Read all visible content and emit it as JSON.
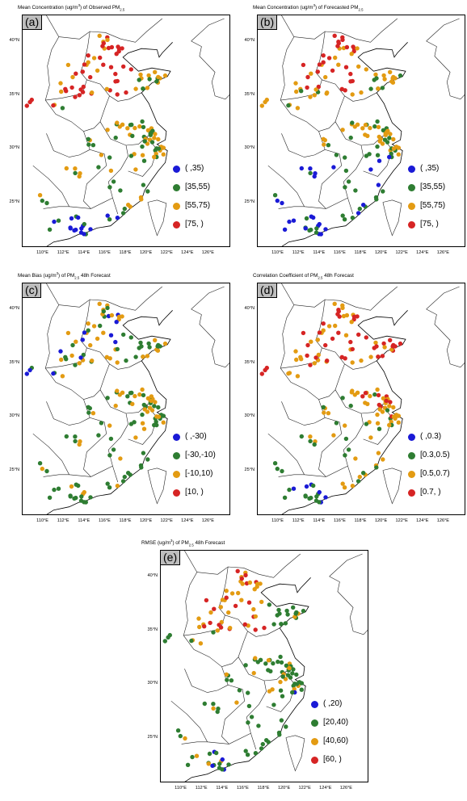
{
  "colors": {
    "blue": "#1a1ad6",
    "green": "#2e7d32",
    "orange": "#e39b12",
    "red": "#d62424"
  },
  "x_ticks": [
    "110°E",
    "112°E",
    "114°E",
    "116°E",
    "118°E",
    "120°E",
    "122°E",
    "124°E",
    "126°E"
  ],
  "y_ticks": [
    "40°N",
    "35°N",
    "30°N",
    "25°N"
  ],
  "panels": [
    {
      "label": "(a)",
      "title_pre": "Mean Concentration (ug/m",
      "title_sup": "3",
      "title_mid": ") of Observed PM",
      "title_sub": "2.5",
      "title_post": "",
      "legend": [
        "( ,35)",
        "[35,55)",
        "[55,75)",
        "[75, )"
      ]
    },
    {
      "label": "(b)",
      "title_pre": "Mean Concentration (ug/m",
      "title_sup": "3",
      "title_mid": ") of Forecasted PM",
      "title_sub": "2.5",
      "title_post": "",
      "legend": [
        "( ,35)",
        "[35,55)",
        "[55,75)",
        "[75, )"
      ]
    },
    {
      "label": "(c)",
      "title_pre": "Mean Bias (ug/m",
      "title_sup": "3",
      "title_mid": ") of PM",
      "title_sub": "2.5",
      "title_post": " 48h Forecast",
      "legend": [
        "( ,-30)",
        "[-30,-10)",
        "[-10,10)",
        "[10, )"
      ]
    },
    {
      "label": "(d)",
      "title_pre": "Correlation Coefficient of PM",
      "title_sup": "",
      "title_mid": "",
      "title_sub": "2.5",
      "title_post": " 48h Forecast",
      "legend": [
        "( ,0.3)",
        "[0.3,0.5)",
        "[0.5,0.7)",
        "[0.7, )"
      ]
    },
    {
      "label": "(e)",
      "title_pre": "RMSE (ug/m",
      "title_sup": "3",
      "title_mid": ") of PM",
      "title_sub": "2.5",
      "title_post": " 48h Forecast",
      "legend": [
        "( ,20)",
        "[20,40)",
        "[40,60)",
        "[60, )"
      ]
    }
  ]
}
